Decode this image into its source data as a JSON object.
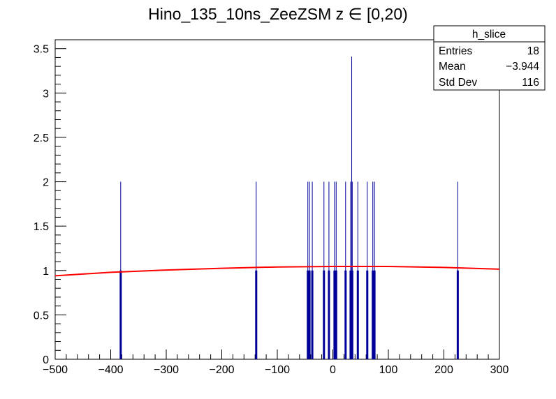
{
  "chart_data": {
    "type": "bar",
    "title": "Hino_135_10ns_ZeeZSM z  ∈ [0,20)",
    "xlabel": "",
    "ylabel": "",
    "xlim": [
      -500,
      300
    ],
    "ylim": [
      0,
      3.6
    ],
    "x_ticks": [
      "−500",
      "−400",
      "−300",
      "−200",
      "−100",
      "0",
      "100",
      "200",
      "300"
    ],
    "x_tick_values": [
      -500,
      -400,
      -300,
      -200,
      -100,
      0,
      100,
      200,
      300
    ],
    "y_ticks": [
      "0",
      "0.5",
      "1",
      "1.5",
      "2",
      "2.5",
      "3",
      "3.5"
    ],
    "y_tick_values": [
      0,
      0.5,
      1,
      1.5,
      2,
      2.5,
      3,
      3.5
    ],
    "bar_color": "#000099",
    "fit_color": "#ff0000",
    "histogram": {
      "bins": [
        {
          "x": -382,
          "value": 1,
          "error": 1
        },
        {
          "x": -138,
          "value": 1,
          "error": 1
        },
        {
          "x": -45,
          "value": 1,
          "error": 1
        },
        {
          "x": -42,
          "value": 1,
          "error": 1
        },
        {
          "x": -37,
          "value": 1,
          "error": 1
        },
        {
          "x": -16,
          "value": 1,
          "error": 1
        },
        {
          "x": -7,
          "value": 1,
          "error": 1
        },
        {
          "x": 3,
          "value": 1,
          "error": 1
        },
        {
          "x": 6,
          "value": 1,
          "error": 1
        },
        {
          "x": 23,
          "value": 1,
          "error": 1
        },
        {
          "x": 32,
          "value": 1,
          "error": 1
        },
        {
          "x": 35,
          "value": 1,
          "error": 1
        },
        {
          "x": 45,
          "value": 1,
          "error": 1
        },
        {
          "x": 62,
          "value": 1,
          "error": 1
        },
        {
          "x": 72,
          "value": 1,
          "error": 1
        },
        {
          "x": 75,
          "value": 1,
          "error": 1
        },
        {
          "x": 225,
          "value": 1,
          "error": 1
        }
      ],
      "tall_error_bin": {
        "x": 34,
        "value": 1,
        "upper": 3.41,
        "lower": 0.6
      }
    },
    "fit_curve": {
      "x": [
        -500,
        -400,
        -300,
        -200,
        -100,
        0,
        100,
        200,
        300
      ],
      "y": [
        0.94,
        0.98,
        1.005,
        1.025,
        1.04,
        1.045,
        1.045,
        1.035,
        1.015
      ]
    },
    "stats_box": {
      "title": "h_slice",
      "rows": [
        {
          "label": "Entries",
          "value": "18"
        },
        {
          "label": "Mean",
          "value": "−3.944"
        },
        {
          "label": "Std Dev",
          "value": "116"
        }
      ]
    }
  }
}
